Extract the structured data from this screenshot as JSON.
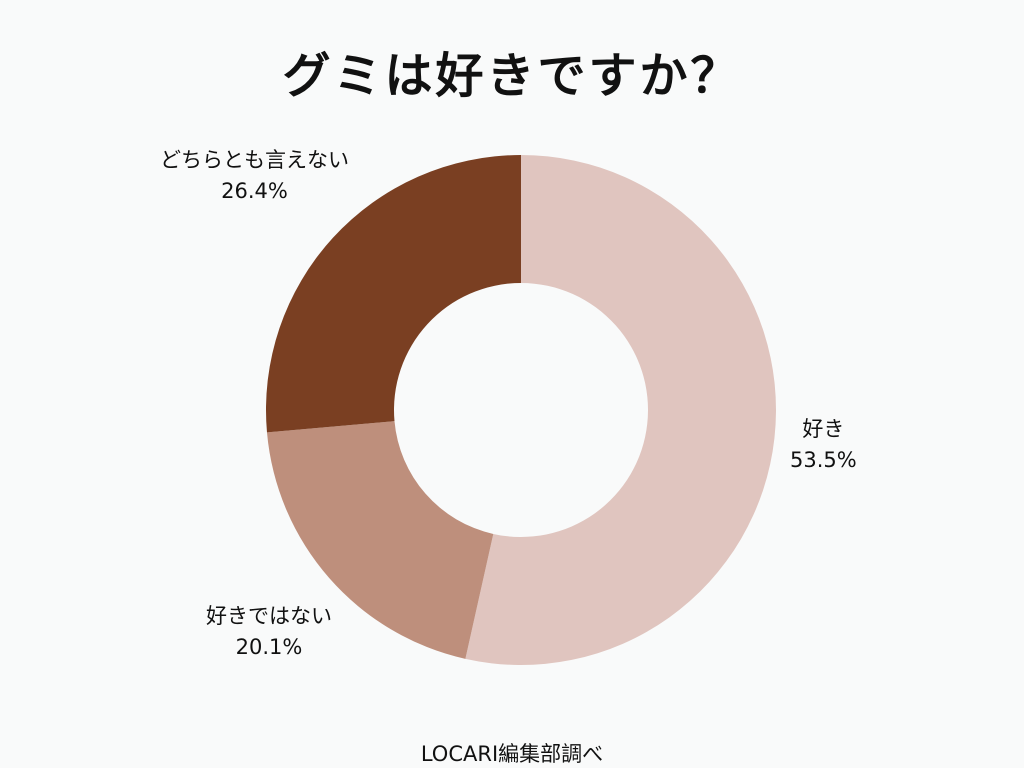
{
  "chart_data": {
    "type": "pie",
    "title": "グミは好きですか？",
    "categories": [
      "好き",
      "好きではない",
      "どちらとも言えない"
    ],
    "values": [
      53.5,
      20.1,
      26.4
    ],
    "value_labels": [
      "53.5%",
      "20.1%",
      "26.4%"
    ],
    "colors": [
      "#e0c5bf",
      "#be8f7c",
      "#7a3f22"
    ],
    "donut": true,
    "legend": "none"
  },
  "source": "LOCARI編集部調べ"
}
